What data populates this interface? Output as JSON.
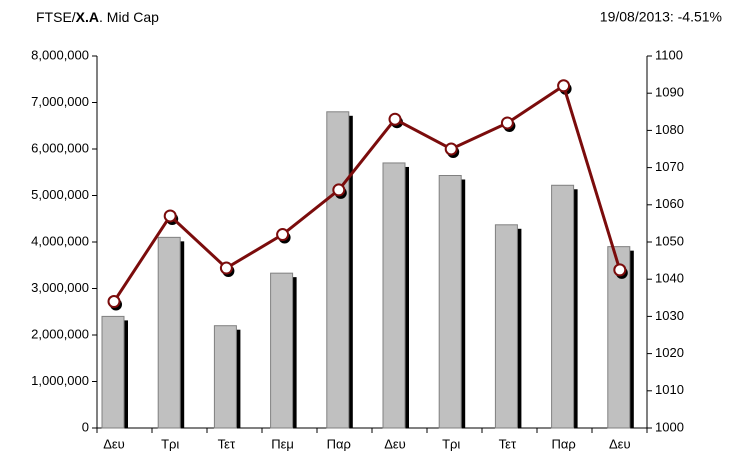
{
  "chart_data": {
    "type": "bar_line",
    "title": [
      "FTSE/",
      "Χ.Α",
      ". Mid Cap"
    ],
    "subtitle": "19/08/2013: -4.51%",
    "categories": [
      "Δευ",
      "Τρι",
      "Τετ",
      "Πεμ",
      "Παρ",
      "Δευ",
      "Τρι",
      "Τετ",
      "Παρ",
      "Δευ"
    ],
    "series": [
      {
        "type": "bar",
        "color": "#c0c0c0",
        "values": [
          2400000,
          4100000,
          2200000,
          3330000,
          6800000,
          5700000,
          5430000,
          4370000,
          5220000,
          3900000
        ]
      },
      {
        "type": "line",
        "axis": "y2",
        "color": "#7b0c0c",
        "values": [
          1034,
          1057,
          1043,
          1052,
          1064,
          1083,
          1075,
          1082,
          1092,
          1042.5
        ]
      }
    ],
    "ylim": [
      0,
      8000000
    ],
    "yticks": [
      0,
      {
        "value": 1000000,
        "label": "1,000,000"
      },
      {
        "value": 2000000,
        "label": "2,000,000"
      },
      {
        "value": 3000000,
        "label": "3,000,000"
      },
      {
        "value": 4000000,
        "label": "4,000,000"
      },
      {
        "value": 5000000,
        "label": "5,000,000"
      },
      {
        "value": 6000000,
        "label": "6,000,000"
      },
      {
        "value": 7000000,
        "label": "7,000,000"
      },
      {
        "value": 8000000,
        "label": "8,000,000"
      }
    ],
    "y2lim": [
      1000,
      1100
    ],
    "y2ticks": [
      1000,
      1010,
      1020,
      1030,
      1040,
      1050,
      1060,
      1070,
      1080,
      1090,
      1100
    ]
  }
}
